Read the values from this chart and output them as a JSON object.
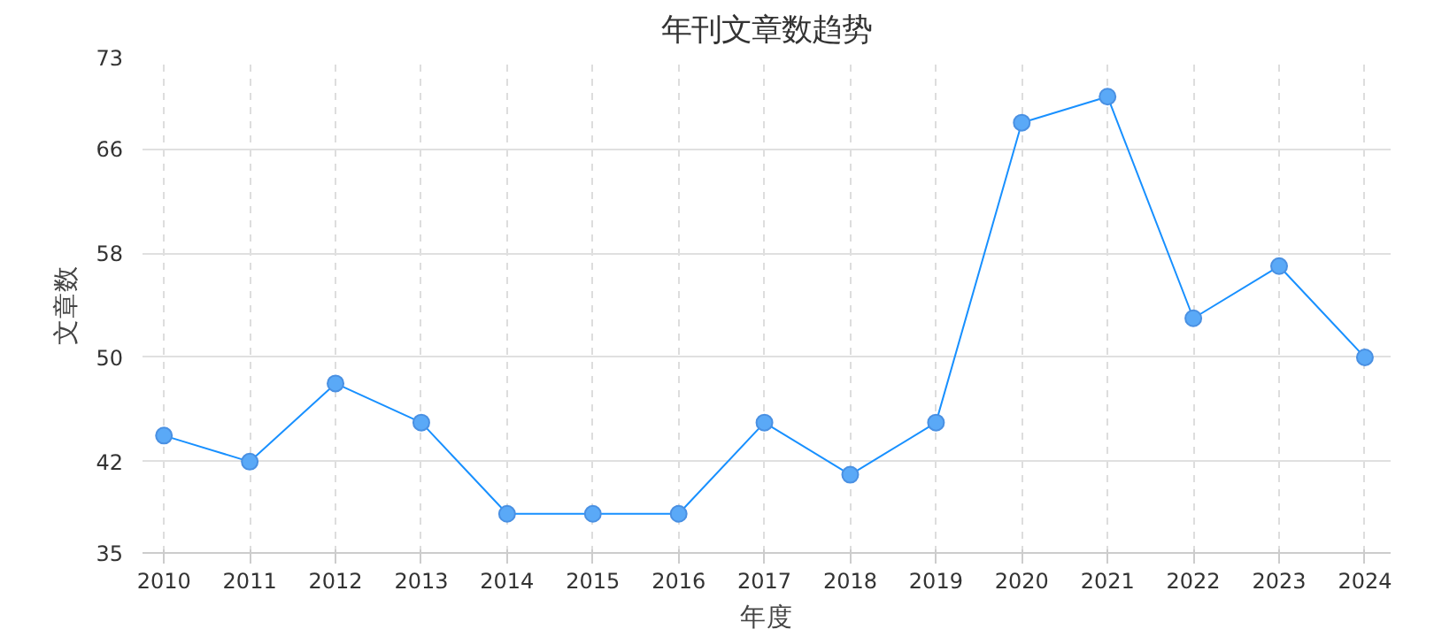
{
  "chart_data": {
    "type": "line",
    "title": "年刊文章数趋势",
    "xlabel": "年度",
    "ylabel": "文章数",
    "categories": [
      "2010",
      "2011",
      "2012",
      "2013",
      "2014",
      "2015",
      "2016",
      "2017",
      "2018",
      "2019",
      "2020",
      "2021",
      "2022",
      "2023",
      "2024"
    ],
    "series": [
      {
        "color": "#1890ff",
        "values": [
          44,
          42,
          48,
          45,
          38,
          38,
          38,
          45,
          41,
          45,
          68,
          70,
          53,
          57,
          50
        ]
      }
    ],
    "ylim": [
      35,
      73
    ],
    "yticks": [
      35,
      42,
      50,
      58,
      66,
      73
    ],
    "grid": true,
    "marker": "circle",
    "line_style": "solid"
  }
}
